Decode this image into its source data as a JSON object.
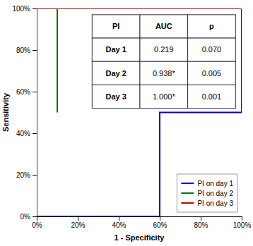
{
  "chart_data": {
    "type": "line",
    "xlabel": "1 - Specificity",
    "ylabel": "Sensitivity",
    "xlim": [
      0,
      1
    ],
    "ylim": [
      0,
      1
    ],
    "xticks": [
      {
        "value": 0,
        "label": "0%"
      },
      {
        "value": 0.2,
        "label": "20%"
      },
      {
        "value": 0.4,
        "label": "40%"
      },
      {
        "value": 0.6,
        "label": "60%"
      },
      {
        "value": 0.8,
        "label": "80%"
      },
      {
        "value": 1.0,
        "label": "100%"
      }
    ],
    "yticks": [
      {
        "value": 0,
        "label": "0%"
      },
      {
        "value": 0.2,
        "label": "20%"
      },
      {
        "value": 0.4,
        "label": "40%"
      },
      {
        "value": 0.6,
        "label": "60%"
      },
      {
        "value": 0.8,
        "label": "80%"
      },
      {
        "value": 1.0,
        "label": "100%"
      }
    ],
    "series": [
      {
        "name": "PI on day 1",
        "color": "#0000cc",
        "x": [
          0,
          0.6,
          0.6,
          1.0,
          1.0
        ],
        "values": [
          0,
          0,
          0.5,
          0.5,
          1.0
        ]
      },
      {
        "name": "PI on day 2",
        "color": "#007700",
        "x": [
          0,
          0,
          0.1,
          0.1
        ],
        "values": [
          0,
          1.0,
          1.0,
          0.5
        ]
      },
      {
        "name": "PI on day 3",
        "color": "#cc0000",
        "x": [
          0,
          0,
          1.0
        ],
        "values": [
          0,
          1.0,
          1.0
        ]
      }
    ],
    "legend": "lower right",
    "table": {
      "header": [
        "PI",
        "AUC",
        "p"
      ],
      "rows": [
        [
          "Day 1",
          "0.219",
          "0.070"
        ],
        [
          "Day 2",
          "0.938*",
          "0.005"
        ],
        [
          "Day 3",
          "1.000*",
          "0.001"
        ]
      ]
    }
  }
}
